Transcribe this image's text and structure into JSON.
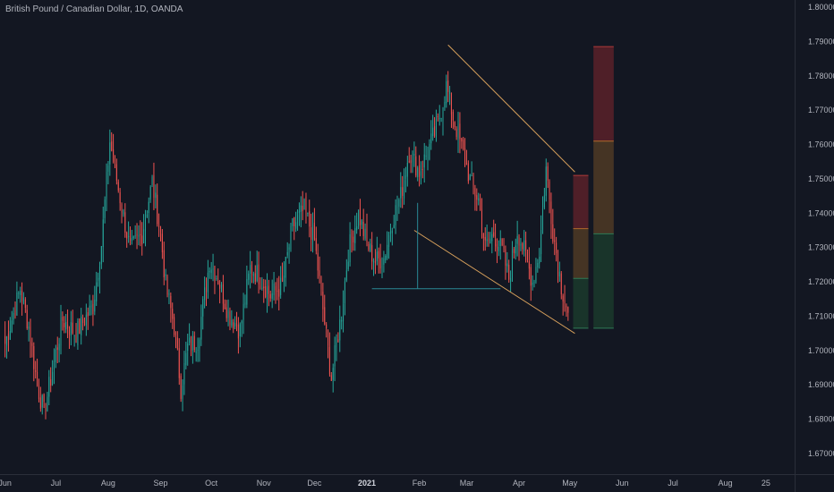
{
  "header": {
    "title": "British Pound / Canadian Dollar, 1D, OANDA"
  },
  "colors": {
    "background": "#131722",
    "up": "#26a69a",
    "down": "#ef5350",
    "wedge_line": "#d8a15c",
    "support_line": "#2a8a96",
    "grid_text": "#b2b5be",
    "zone_red": "#5a2129",
    "zone_orange": "#4f3a25",
    "zone_green": "#1b3a2c",
    "zone_border_red": "#b03a3a",
    "zone_border_orange": "#b06a2a",
    "zone_border_green": "#2f7a56"
  },
  "chart_data": {
    "type": "candlestick",
    "title": "British Pound / Canadian Dollar, 1D, OANDA",
    "ylim": [
      1.665,
      1.803
    ],
    "y_ticks": [
      "1.80000",
      "1.79000",
      "1.78000",
      "1.77000",
      "1.76000",
      "1.75000",
      "1.74000",
      "1.73000",
      "1.72000",
      "1.71000",
      "1.70000",
      "1.69000",
      "1.68000",
      "1.67000"
    ],
    "x_ticks": [
      {
        "label": "Jun",
        "x": 0,
        "bold": false
      },
      {
        "label": "Jul",
        "x": 30,
        "bold": false
      },
      {
        "label": "Aug",
        "x": 61,
        "bold": false
      },
      {
        "label": "Sep",
        "x": 92,
        "bold": false
      },
      {
        "label": "Oct",
        "x": 122,
        "bold": false
      },
      {
        "label": "Nov",
        "x": 153,
        "bold": false
      },
      {
        "label": "Dec",
        "x": 183,
        "bold": false
      },
      {
        "label": "2021",
        "x": 214,
        "bold": true
      },
      {
        "label": "Feb",
        "x": 245,
        "bold": false
      },
      {
        "label": "Mar",
        "x": 273,
        "bold": false
      },
      {
        "label": "Apr",
        "x": 304,
        "bold": false
      },
      {
        "label": "May",
        "x": 334,
        "bold": false
      },
      {
        "label": "Jun",
        "x": 365,
        "bold": false
      },
      {
        "label": "Jul",
        "x": 395,
        "bold": false
      },
      {
        "label": "Aug",
        "x": 426,
        "bold": false
      },
      {
        "label": "25",
        "x": 450,
        "bold": false
      }
    ],
    "x_domain": [
      -3,
      467
    ],
    "anchors": [
      [
        0,
        1.702
      ],
      [
        9,
        1.718
      ],
      [
        14,
        1.707
      ],
      [
        19,
        1.69
      ],
      [
        23,
        1.682
      ],
      [
        34,
        1.709
      ],
      [
        42,
        1.705
      ],
      [
        52,
        1.713
      ],
      [
        57,
        1.731
      ],
      [
        62,
        1.761
      ],
      [
        67,
        1.747
      ],
      [
        74,
        1.729
      ],
      [
        81,
        1.734
      ],
      [
        87,
        1.749
      ],
      [
        92,
        1.734
      ],
      [
        95,
        1.719
      ],
      [
        100,
        1.707
      ],
      [
        104,
        1.689
      ],
      [
        108,
        1.701
      ],
      [
        114,
        1.703
      ],
      [
        121,
        1.726
      ],
      [
        126,
        1.721
      ],
      [
        132,
        1.711
      ],
      [
        139,
        1.706
      ],
      [
        145,
        1.724
      ],
      [
        150,
        1.722
      ],
      [
        157,
        1.716
      ],
      [
        164,
        1.719
      ],
      [
        170,
        1.736
      ],
      [
        177,
        1.741
      ],
      [
        183,
        1.732
      ],
      [
        188,
        1.712
      ],
      [
        193,
        1.692
      ],
      [
        199,
        1.711
      ],
      [
        203,
        1.729
      ],
      [
        209,
        1.74
      ],
      [
        214,
        1.731
      ],
      [
        219,
        1.726
      ],
      [
        224,
        1.727
      ],
      [
        229,
        1.738
      ],
      [
        234,
        1.745
      ],
      [
        239,
        1.758
      ],
      [
        245,
        1.752
      ],
      [
        250,
        1.758
      ],
      [
        256,
        1.766
      ],
      [
        261,
        1.777
      ],
      [
        265,
        1.768
      ],
      [
        270,
        1.759
      ],
      [
        276,
        1.748
      ],
      [
        280,
        1.744
      ],
      [
        284,
        1.73
      ],
      [
        289,
        1.734
      ],
      [
        294,
        1.729
      ],
      [
        298,
        1.721
      ],
      [
        303,
        1.735
      ],
      [
        307,
        1.729
      ],
      [
        312,
        1.72
      ],
      [
        316,
        1.729
      ],
      [
        320,
        1.753
      ],
      [
        324,
        1.735
      ],
      [
        329,
        1.719
      ],
      [
        333,
        1.711
      ]
    ],
    "wedge": {
      "upper": [
        [
          262,
          1.789
        ],
        [
          337,
          1.752
        ]
      ],
      "lower": [
        [
          242,
          1.735
        ],
        [
          337,
          1.705
        ]
      ],
      "support": [
        [
          217,
          1.718
        ],
        [
          293,
          1.718
        ]
      ],
      "support_riser": [
        [
          244,
          1.718
        ],
        [
          244,
          1.743
        ]
      ]
    },
    "zones": [
      {
        "name": "zone-a",
        "x0": 336,
        "x1": 345,
        "bands": [
          {
            "from": 1.7355,
            "to": 1.751,
            "color": "red"
          },
          {
            "from": 1.721,
            "to": 1.7355,
            "color": "orange"
          },
          {
            "from": 1.7065,
            "to": 1.721,
            "color": "green"
          }
        ]
      },
      {
        "name": "zone-b",
        "x0": 348,
        "x1": 360,
        "bands": [
          {
            "from": 1.761,
            "to": 1.7885,
            "color": "red"
          },
          {
            "from": 1.734,
            "to": 1.761,
            "color": "orange"
          },
          {
            "from": 1.7065,
            "to": 1.734,
            "color": "green"
          }
        ]
      }
    ]
  }
}
